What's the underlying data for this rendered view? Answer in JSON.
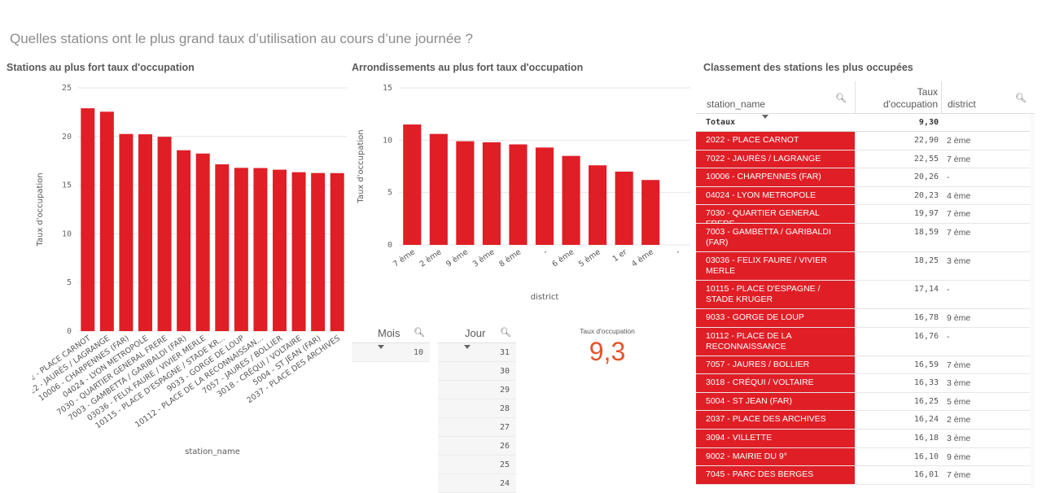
{
  "page": {
    "title": "Quelles stations ont le plus grand taux d’utilisation au cours d’une journée ?"
  },
  "panels": {
    "stations_title": "Stations au plus fort taux d'occupation",
    "districts_title": "Arrondissements au plus fort taux d'occupation",
    "ranking_title": "Classement des stations les plus occupées"
  },
  "chart_data": [
    {
      "type": "bar",
      "xlabel": "station_name",
      "ylabel": "Taux d'occupation",
      "ylim": [
        0,
        25
      ],
      "yticks": [
        "0",
        "5",
        "10",
        "15",
        "20",
        "25"
      ],
      "color": "#e01e26",
      "grid": true,
      "categories": [
        "2022 - PLACE CARNOT",
        "7022 - JAURÈS / LAGRANGE",
        "10006 - CHARPENNES (FAR)",
        "04024 - LYON METROPOLE",
        "7030 - QUARTIER GENERAL FRERE",
        "7003 - GAMBETTA / GARIBALDI (FAR)",
        "03036 - FELIX FAURE / VIVIER MERLE",
        "10115 - PLACE D'ESPAGNE / STADE KR...",
        "9033 - GORGE DE LOUP",
        "10112 - PLACE DE LA RECONNAISSAN...",
        "7057 - JAURES / BOLLIER",
        "3018 - CRÉQUI / VOLTAIRE",
        "5004 - ST JEAN (FAR)",
        "2037 - PLACE DES ARCHIVES"
      ],
      "values": [
        22.9,
        22.55,
        20.26,
        20.23,
        19.97,
        18.59,
        18.25,
        17.14,
        16.78,
        16.76,
        16.59,
        16.33,
        16.25,
        16.24
      ]
    },
    {
      "type": "bar",
      "xlabel": "district",
      "ylabel": "Taux d'occupation",
      "ylim": [
        0,
        15
      ],
      "yticks": [
        "0",
        "5",
        "10",
        "15"
      ],
      "color": "#e01e26",
      "grid": true,
      "categories": [
        "7 ème",
        "2 ème",
        "9 ème",
        "3 ème",
        "8 ème",
        "-",
        "6 ème",
        "5 ème",
        "1 er",
        "4 ème",
        "-"
      ],
      "values": [
        11.5,
        10.6,
        9.9,
        9.8,
        9.6,
        9.3,
        8.5,
        7.6,
        7.0,
        6.2,
        0
      ]
    }
  ],
  "filters": {
    "mois": {
      "label": "Mois",
      "values": [
        "10"
      ]
    },
    "jour": {
      "label": "Jour",
      "values": [
        "31",
        "30",
        "29",
        "28",
        "27",
        "26",
        "25",
        "24"
      ]
    }
  },
  "kpi": {
    "label": "Taux d'occupation",
    "value": "9,3"
  },
  "table": {
    "headers": {
      "station": "station_name",
      "taux_line1": "Taux",
      "taux_line2": "d'occupation",
      "district": "district"
    },
    "totals": {
      "label": "Totaux",
      "value": "9,30"
    },
    "rows": [
      {
        "name": "2022 - PLACE CARNOT",
        "value": "22,90",
        "district": "2 ème"
      },
      {
        "name": "7022 - JAURÈS / LAGRANGE",
        "value": "22,55",
        "district": "7 ème"
      },
      {
        "name": "10006 - CHARPENNES (FAR)",
        "value": "20,26",
        "district": "-"
      },
      {
        "name": "04024 - LYON METROPOLE",
        "value": "20,23",
        "district": "4 ème"
      },
      {
        "name": "7030 - QUARTIER GENERAL FRERE",
        "value": "19,97",
        "district": "7 ème"
      },
      {
        "name": "7003 - GAMBETTA / GARIBALDI (FAR)",
        "value": "18,59",
        "district": "7 ème"
      },
      {
        "name": "03036 - FELIX FAURE / VIVIER MERLE",
        "value": "18,25",
        "district": "3 ème"
      },
      {
        "name": "10115 - PLACE D'ESPAGNE / STADE KRUGER",
        "value": "17,14",
        "district": "-"
      },
      {
        "name": "9033 - GORGE DE LOUP",
        "value": "16,78",
        "district": "9 ème"
      },
      {
        "name": "10112 - PLACE DE LA RECONNAISSANCE",
        "value": "16,76",
        "district": "-"
      },
      {
        "name": "7057 - JAURES / BOLLIER",
        "value": "16,59",
        "district": "7 ème"
      },
      {
        "name": "3018 - CRÉQUI / VOLTAIRE",
        "value": "16,33",
        "district": "3 ème"
      },
      {
        "name": "5004 - ST JEAN (FAR)",
        "value": "16,25",
        "district": "5 ème"
      },
      {
        "name": "2037 - PLACE DES ARCHIVES",
        "value": "16,24",
        "district": "2 ème"
      },
      {
        "name": "3094 - VILLETTE",
        "value": "16,18",
        "district": "3 ème"
      },
      {
        "name": "9002 - MAIRIE DU 9°",
        "value": "16,10",
        "district": "9 ème"
      },
      {
        "name": "7045 - PARC DES BERGES",
        "value": "16,01",
        "district": "7 ème"
      }
    ]
  }
}
